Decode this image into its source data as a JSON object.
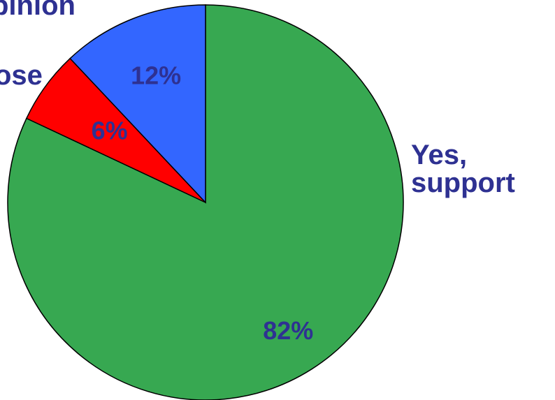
{
  "chart_data": {
    "type": "pie",
    "slices": [
      {
        "name": "Yes, support",
        "value": 82,
        "label": "82%",
        "color": "#37a851"
      },
      {
        "name": "oppose",
        "value": 6,
        "label": "6%",
        "color": "#ff0000"
      },
      {
        "name": "opinion",
        "value": 12,
        "label": "12%",
        "color": "#3366ff"
      }
    ],
    "label_color": "#2e3192"
  },
  "labels": {
    "support_line1": "Yes,",
    "support_line2": "support",
    "oppose": "ose",
    "no_opinion": "pinion"
  }
}
